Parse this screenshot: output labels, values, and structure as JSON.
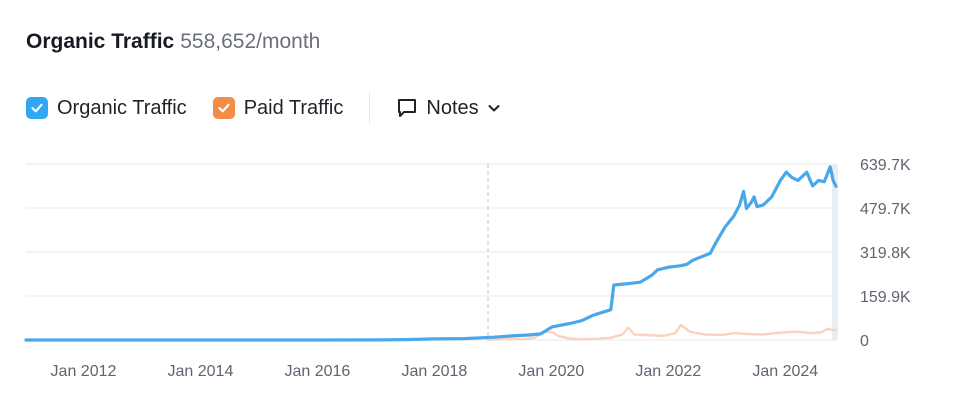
{
  "header": {
    "title": "Organic Traffic",
    "value": "558,652/month"
  },
  "legend": {
    "items": [
      {
        "label": "Organic Traffic",
        "color": "#2fa7f2",
        "checked": true
      },
      {
        "label": "Paid Traffic",
        "color": "#f58c45",
        "checked": true
      }
    ],
    "notes_label": "Notes"
  },
  "colors": {
    "organic": "#4aa8ea",
    "paid": "#fbd3bd",
    "grid": "#e7e9ec",
    "marker": "#c9ccd1"
  },
  "chart_data": {
    "type": "line",
    "x_axis": {
      "range": [
        2011.0,
        2024.85
      ],
      "tick_values": [
        2012,
        2014,
        2016,
        2018,
        2020,
        2022,
        2024
      ],
      "tick_labels": [
        "Jan 2012",
        "Jan 2014",
        "Jan 2016",
        "Jan 2018",
        "Jan 2020",
        "Jan 2022",
        "Jan 2024"
      ]
    },
    "y_axis": {
      "range": [
        0,
        639700
      ],
      "tick_values": [
        0,
        159900,
        319800,
        479700,
        639700
      ],
      "tick_labels": [
        "0",
        "159.9K",
        "319.8K",
        "479.7K",
        "639.7K"
      ],
      "position": "right"
    },
    "grid": true,
    "marker_x": 2018.9,
    "series": [
      {
        "name": "Organic Traffic",
        "color": "#4aa8ea",
        "points": [
          [
            2011.0,
            0
          ],
          [
            2016.0,
            0
          ],
          [
            2017.0,
            500
          ],
          [
            2017.5,
            1500
          ],
          [
            2018.0,
            4000
          ],
          [
            2018.5,
            5000
          ],
          [
            2019.0,
            10000
          ],
          [
            2019.3,
            15000
          ],
          [
            2019.6,
            18000
          ],
          [
            2019.8,
            22000
          ],
          [
            2020.0,
            48000
          ],
          [
            2020.3,
            60000
          ],
          [
            2020.5,
            70000
          ],
          [
            2020.7,
            90000
          ],
          [
            2021.0,
            110000
          ],
          [
            2021.05,
            200000
          ],
          [
            2021.3,
            205000
          ],
          [
            2021.5,
            210000
          ],
          [
            2021.7,
            235000
          ],
          [
            2021.8,
            255000
          ],
          [
            2022.0,
            265000
          ],
          [
            2022.2,
            270000
          ],
          [
            2022.3,
            275000
          ],
          [
            2022.4,
            290000
          ],
          [
            2022.7,
            315000
          ],
          [
            2022.8,
            355000
          ],
          [
            2022.95,
            410000
          ],
          [
            2023.1,
            450000
          ],
          [
            2023.2,
            490000
          ],
          [
            2023.27,
            540000
          ],
          [
            2023.32,
            478000
          ],
          [
            2023.4,
            500000
          ],
          [
            2023.45,
            520000
          ],
          [
            2023.5,
            485000
          ],
          [
            2023.6,
            490000
          ],
          [
            2023.75,
            520000
          ],
          [
            2023.9,
            580000
          ],
          [
            2024.0,
            610000
          ],
          [
            2024.1,
            590000
          ],
          [
            2024.2,
            580000
          ],
          [
            2024.35,
            610000
          ],
          [
            2024.45,
            560000
          ],
          [
            2024.55,
            580000
          ],
          [
            2024.65,
            575000
          ],
          [
            2024.75,
            630000
          ],
          [
            2024.8,
            580000
          ],
          [
            2024.85,
            558652
          ]
        ]
      },
      {
        "name": "Paid Traffic",
        "color": "#fbd3bd",
        "points": [
          [
            2018.9,
            0
          ],
          [
            2019.2,
            5000
          ],
          [
            2019.5,
            3000
          ],
          [
            2019.7,
            8000
          ],
          [
            2019.85,
            30000
          ],
          [
            2020.0,
            28000
          ],
          [
            2020.1,
            15000
          ],
          [
            2020.3,
            5000
          ],
          [
            2020.5,
            2000
          ],
          [
            2020.8,
            5000
          ],
          [
            2021.0,
            8000
          ],
          [
            2021.2,
            20000
          ],
          [
            2021.3,
            45000
          ],
          [
            2021.4,
            20000
          ],
          [
            2021.6,
            18000
          ],
          [
            2021.9,
            15000
          ],
          [
            2022.1,
            25000
          ],
          [
            2022.2,
            55000
          ],
          [
            2022.35,
            30000
          ],
          [
            2022.6,
            20000
          ],
          [
            2022.9,
            18000
          ],
          [
            2023.1,
            25000
          ],
          [
            2023.3,
            22000
          ],
          [
            2023.6,
            20000
          ],
          [
            2023.8,
            25000
          ],
          [
            2024.0,
            28000
          ],
          [
            2024.2,
            30000
          ],
          [
            2024.4,
            25000
          ],
          [
            2024.6,
            28000
          ],
          [
            2024.7,
            40000
          ],
          [
            2024.85,
            35000
          ]
        ]
      }
    ]
  }
}
